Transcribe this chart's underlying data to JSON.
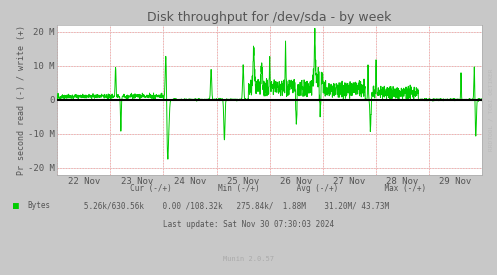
{
  "title": "Disk throughput for /dev/sda - by week",
  "ylabel": "Pr second read (-) / write (+)",
  "xlabel_dates": [
    "22 Nov",
    "23 Nov",
    "24 Nov",
    "25 Nov",
    "26 Nov",
    "27 Nov",
    "28 Nov",
    "29 Nov"
  ],
  "yticks": [
    -20,
    -10,
    0,
    10,
    20
  ],
  "ytick_labels": [
    "-20 M",
    "-10 M",
    "0",
    "10 M",
    "20 M"
  ],
  "ylim": [
    -22,
    22
  ],
  "bg_color": "#c8c8c8",
  "plot_bg_color": "#ffffff",
  "grid_color_major": "#dddddd",
  "grid_color_minor": "#ff9999",
  "line_color": "#00cc00",
  "zero_line_color": "#000000",
  "title_color": "#555555",
  "label_color": "#555555",
  "last_update": "Last update: Sat Nov 30 07:30:03 2024",
  "munin_version": "Munin 2.0.57",
  "rrdtool_text": "RRDTOOL / TOBI OETIKER",
  "title_fontsize": 9,
  "axis_fontsize": 6.5,
  "seed": 12345,
  "n_points": 2016
}
